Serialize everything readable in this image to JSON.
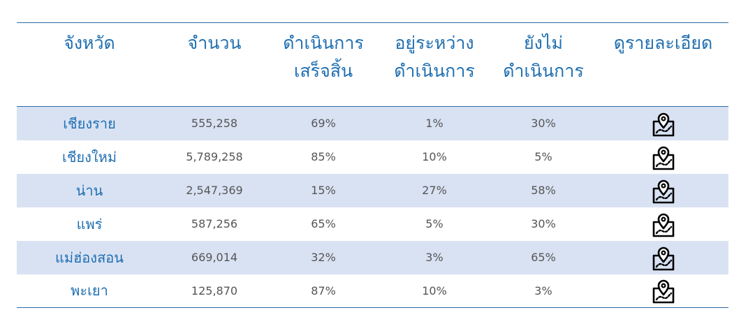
{
  "table": {
    "headers": [
      {
        "lines": [
          "จังหวัด"
        ]
      },
      {
        "lines": [
          "จำนวน"
        ]
      },
      {
        "lines": [
          "ดำเนินการ",
          "เสร็จสิ้น"
        ]
      },
      {
        "lines": [
          "อยู่ระหว่าง",
          "ดำเนินการ"
        ]
      },
      {
        "lines": [
          "ยังไม่",
          "ดำเนินการ"
        ]
      },
      {
        "lines": [
          "ดูรายละเอียด"
        ]
      }
    ],
    "rows": [
      {
        "province": "เชียงราย",
        "count": "555,258",
        "done": "69%",
        "in_progress": "1%",
        "not_started": "30%",
        "icon": "map-pin-icon"
      },
      {
        "province": "เชียงใหม่",
        "count": "5,789,258",
        "done": "85%",
        "in_progress": "10%",
        "not_started": "5%",
        "icon": "map-pin-icon"
      },
      {
        "province": "น่าน",
        "count": "2,547,369",
        "done": "15%",
        "in_progress": "27%",
        "not_started": "58%",
        "icon": "map-pin-icon"
      },
      {
        "province": "แพร่",
        "count": "587,256",
        "done": "65%",
        "in_progress": "5%",
        "not_started": "30%",
        "icon": "map-pin-icon"
      },
      {
        "province": "แม่ฮ่องสอน",
        "count": "669,014",
        "done": "32%",
        "in_progress": "3%",
        "not_started": "65%",
        "icon": "map-pin-icon"
      },
      {
        "province": "พะเยา",
        "count": "125,870",
        "done": "87%",
        "in_progress": "10%",
        "not_started": "3%",
        "icon": "map-pin-icon"
      }
    ]
  },
  "colors": {
    "header_text": "#1f6fb1",
    "rule": "#2e6aa7",
    "row_alt": "#d9e2f3",
    "cell_text": "#555555"
  }
}
